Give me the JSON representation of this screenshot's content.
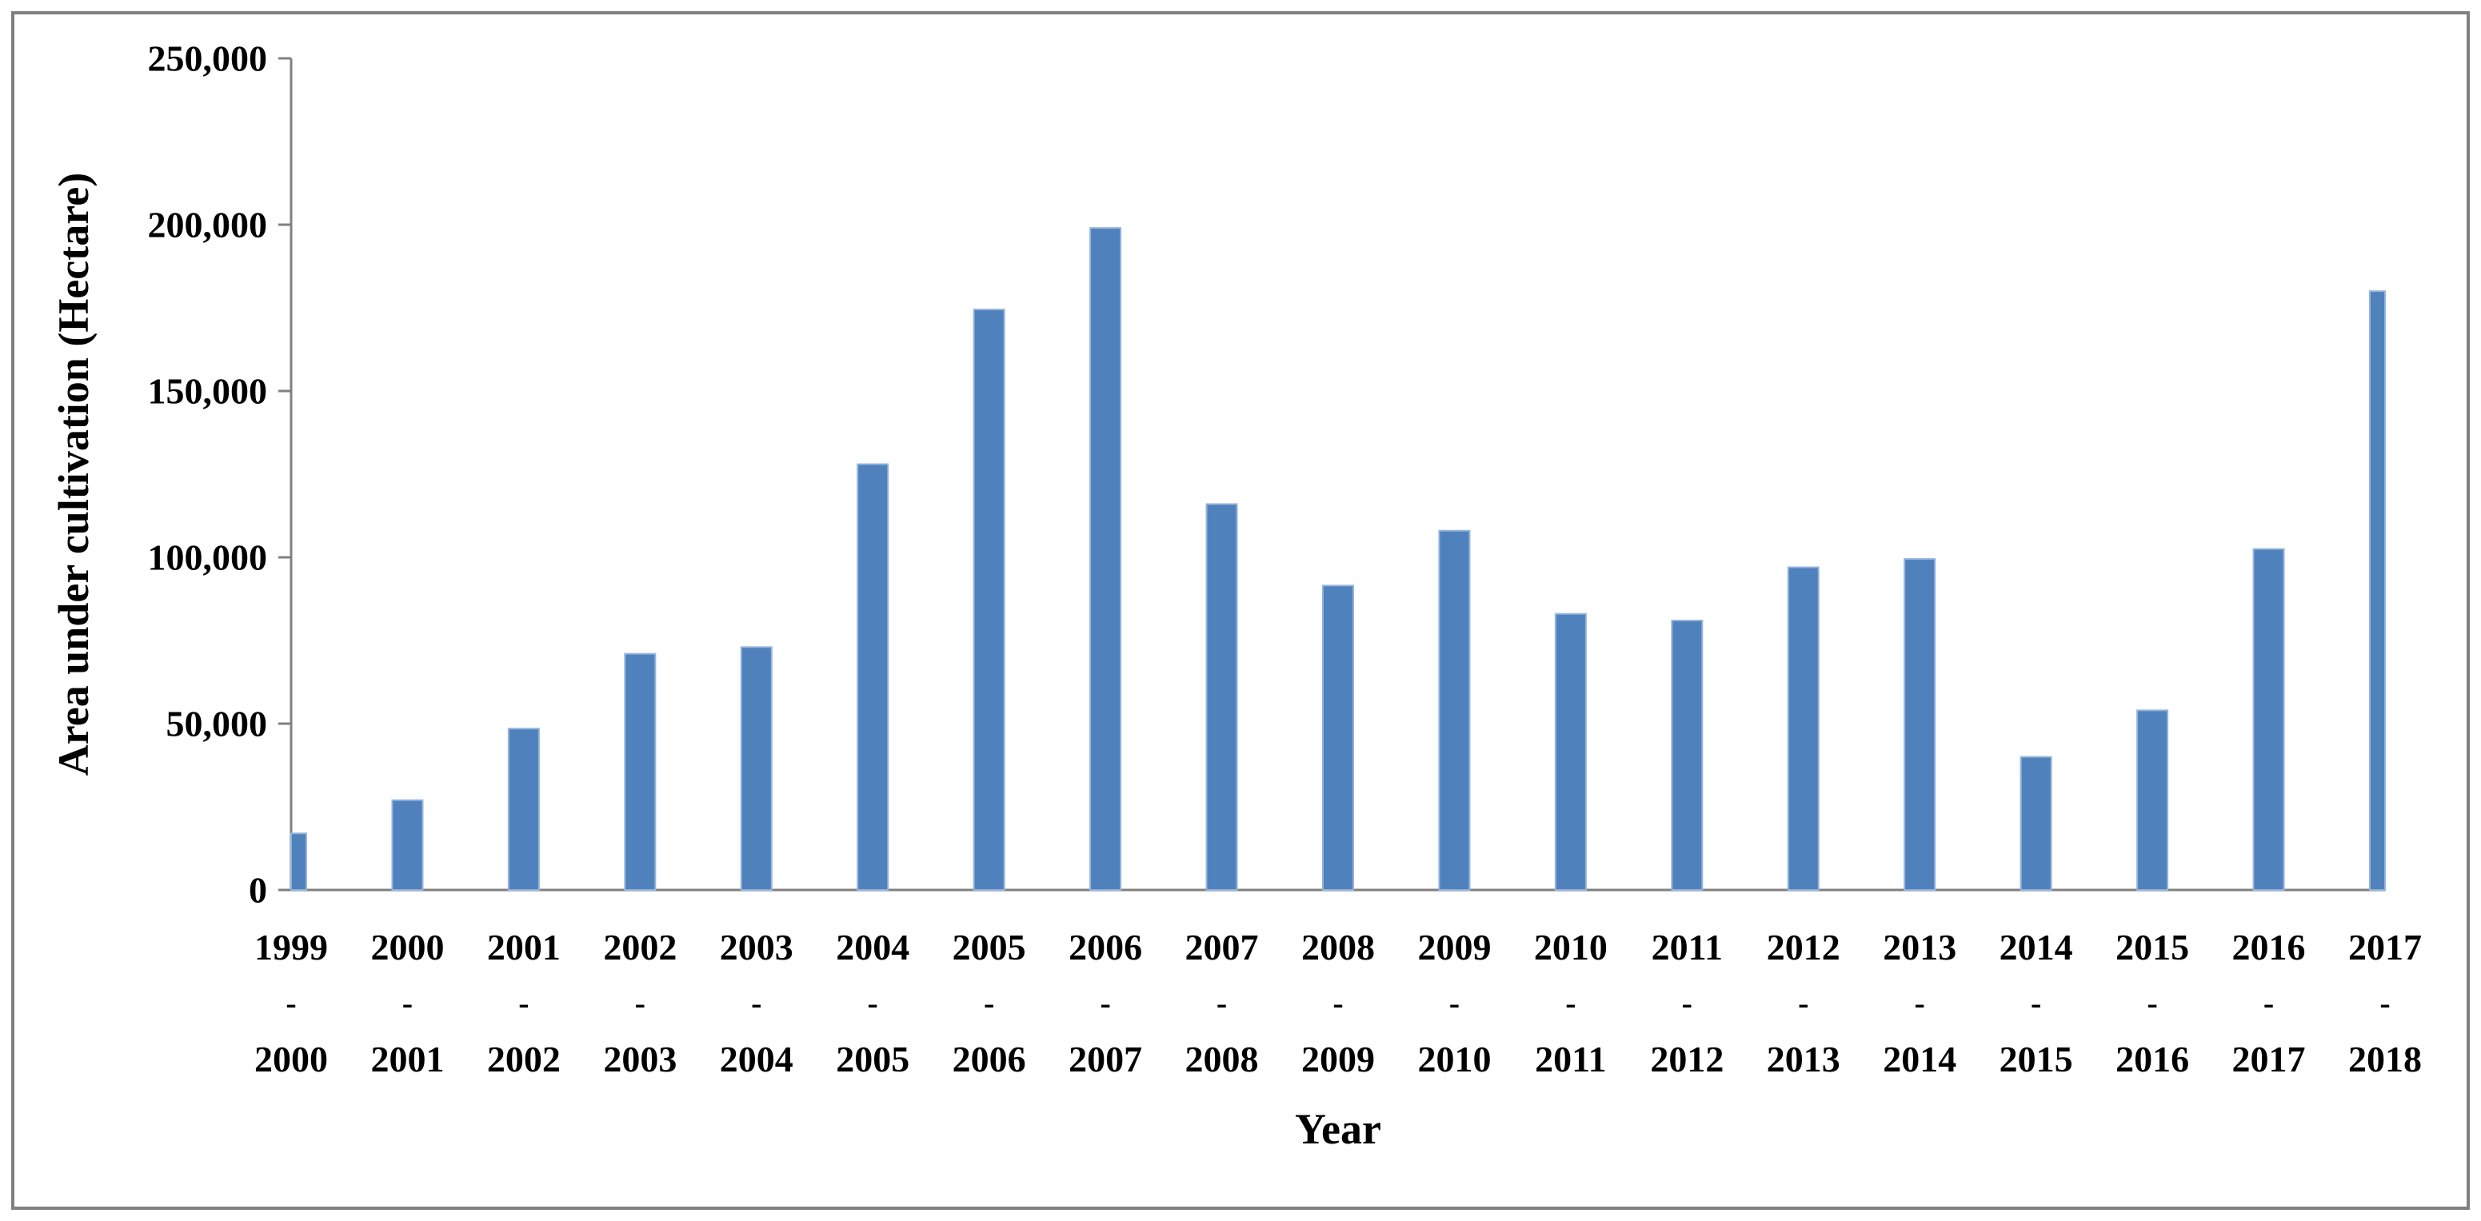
{
  "figure": {
    "background": "#ffffff",
    "border_color": "#808080",
    "border_width": 4
  },
  "chart_data": {
    "type": "bar",
    "title": "",
    "xlabel": "Year",
    "ylabel": "Area under cultivation (Hectare)",
    "categories": [
      "1999-2000",
      "2000-2001",
      "2001-2002",
      "2002-2003",
      "2003-2004",
      "2004-2005",
      "2005-2006",
      "2006-2007",
      "2007-2008",
      "2008-2009",
      "2009-2010",
      "2010-2011",
      "2011-2012",
      "2012-2013",
      "2013-2014",
      "2014-2015",
      "2015-2016",
      "2016-2017",
      "2017-2018"
    ],
    "category_separator": "-",
    "values": [
      17000,
      27000,
      48500,
      71000,
      73000,
      128000,
      174500,
      199000,
      116000,
      91500,
      108000,
      83000,
      81000,
      97000,
      99500,
      40000,
      54000,
      102500,
      180000
    ],
    "ylim": [
      0,
      250000
    ],
    "yticks": [
      0,
      50000,
      100000,
      150000,
      200000,
      250000
    ],
    "ytick_labels": [
      "0",
      "50,000",
      "100,000",
      "150,000",
      "200,000",
      "250,000"
    ],
    "grid": false,
    "legend": null,
    "bar_color": "#4f81bd",
    "bar_edge_color": "#94b4db",
    "axis_color": "#808080",
    "text_color": "#000000"
  }
}
